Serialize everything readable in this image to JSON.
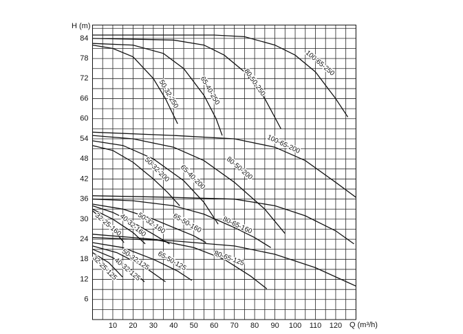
{
  "chart_data": {
    "type": "line",
    "y_label": "H (m)",
    "x_label": "Q (m³/h)",
    "color": "#111111",
    "xlim": [
      0,
      130
    ],
    "ylim": [
      0,
      88
    ],
    "xminor": 5,
    "yminor": 3,
    "grid": true,
    "xticks": [
      10,
      20,
      30,
      40,
      50,
      60,
      70,
      80,
      90,
      100,
      110,
      120
    ],
    "yticks": [
      6,
      12,
      18,
      24,
      30,
      36,
      42,
      48,
      54,
      60,
      66,
      72,
      78,
      84
    ],
    "series": [
      {
        "name": "100-65-250",
        "x": [
          0,
          60,
          75,
          90,
          100,
          110,
          120,
          126
        ],
        "values": [
          85,
          85,
          84.5,
          82,
          79,
          74,
          66,
          60.5
        ]
      },
      {
        "name": "80-50-250",
        "x": [
          0,
          40,
          55,
          65,
          75,
          85,
          93
        ],
        "values": [
          84,
          83.5,
          82,
          79,
          74,
          66,
          57
        ]
      },
      {
        "name": "65-40-250",
        "x": [
          0,
          20,
          35,
          45,
          55,
          61,
          64
        ],
        "values": [
          82.5,
          82,
          79.5,
          75,
          67,
          60,
          55
        ]
      },
      {
        "name": "50-32-250",
        "x": [
          0,
          10,
          20,
          30,
          36,
          42
        ],
        "values": [
          82,
          81,
          78.5,
          72,
          66,
          58.5
        ]
      },
      {
        "name": "100-65-200",
        "x": [
          0,
          40,
          70,
          90,
          105,
          120,
          130
        ],
        "values": [
          56,
          55,
          54,
          51.5,
          47.5,
          41,
          36.5
        ]
      },
      {
        "name": "80-50-200",
        "x": [
          0,
          20,
          40,
          55,
          70,
          85,
          95
        ],
        "values": [
          55,
          54,
          51.5,
          47.5,
          41,
          33,
          25.7
        ]
      },
      {
        "name": "65-40-200",
        "x": [
          0,
          15,
          30,
          45,
          55,
          62
        ],
        "values": [
          53.4,
          52,
          48,
          41.5,
          35,
          28.5
        ]
      },
      {
        "name": "50-32-200",
        "x": [
          0,
          10,
          20,
          30,
          37,
          43
        ],
        "values": [
          52,
          50.5,
          47,
          42,
          38,
          34
        ]
      },
      {
        "x": [
          0,
          40,
          70,
          90,
          105,
          120,
          129
        ],
        "values": [
          37,
          36.5,
          36,
          34,
          31,
          26.5,
          22.6
        ]
      },
      {
        "name": "80-65-160",
        "x": [
          0,
          20,
          40,
          55,
          70,
          80,
          88
        ],
        "values": [
          36,
          35.5,
          34,
          31.5,
          27.5,
          24.5,
          21.5
        ]
      },
      {
        "name": "65-50-160",
        "x": [
          0,
          15,
          30,
          42,
          50,
          56
        ],
        "values": [
          34.5,
          33,
          30,
          27,
          25,
          23
        ]
      },
      {
        "name": "50-32-160",
        "x": [
          0,
          10,
          20,
          30,
          38
        ],
        "values": [
          34,
          32,
          29,
          25.5,
          22.6
        ]
      },
      {
        "name": "40-32-160",
        "x": [
          0,
          10,
          20,
          26
        ],
        "values": [
          33,
          30,
          26,
          22.6
        ]
      },
      {
        "name": "32-25-160",
        "x": [
          0,
          8,
          15.5
        ],
        "values": [
          32.5,
          28.5,
          23
        ]
      },
      {
        "x": [
          0,
          40,
          70,
          90,
          110,
          130
        ],
        "values": [
          24.5,
          23.5,
          22,
          19.5,
          15.5,
          10
        ]
      },
      {
        "name": "80-65-125",
        "x": [
          0,
          30,
          50,
          65,
          78,
          86
        ],
        "values": [
          25.5,
          24,
          21.5,
          18,
          13,
          9.2
        ]
      },
      {
        "name": "65-50-125",
        "x": [
          0,
          15,
          30,
          42,
          49
        ],
        "values": [
          23,
          21.5,
          18,
          14.5,
          11.7
        ]
      },
      {
        "name": "50-32-125",
        "x": [
          0,
          12,
          25,
          36
        ],
        "values": [
          22,
          20,
          16,
          11.3
        ]
      },
      {
        "name": "40-32-125",
        "x": [
          0,
          10,
          20,
          25.6
        ],
        "values": [
          21,
          18.5,
          14.5,
          11.3
        ]
      },
      {
        "name": "32-25-125",
        "x": [
          0,
          8,
          14.8
        ],
        "values": [
          20,
          17,
          12.7
        ]
      }
    ]
  }
}
